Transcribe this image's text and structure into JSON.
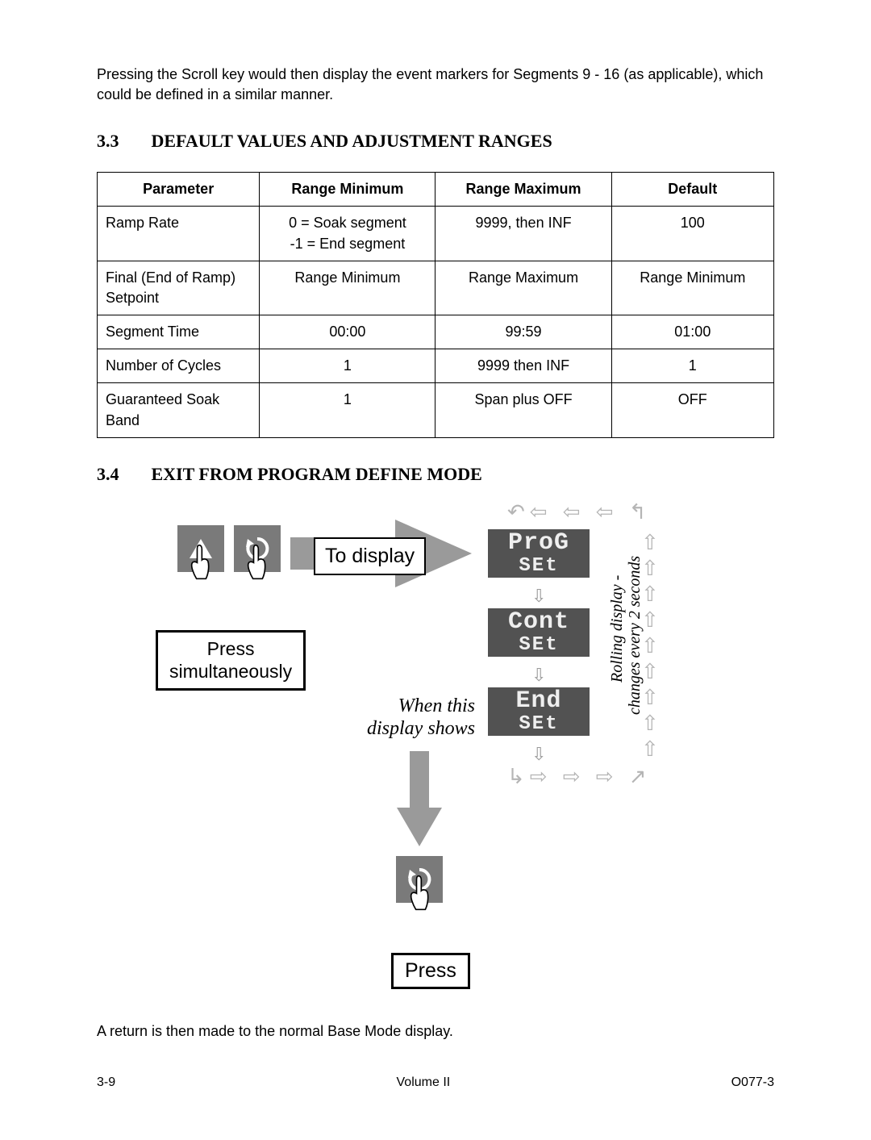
{
  "intro_text": "Pressing the Scroll key would then display the event markers for Segments 9 - 16 (as applicable), which could be defined in a similar manner.",
  "section_33": {
    "number": "3.3",
    "title": "DEFAULT VALUES AND ADJUSTMENT RANGES"
  },
  "table": {
    "headers": {
      "param": "Parameter",
      "rmin": "Range Minimum",
      "rmax": "Range Maximum",
      "def": "Default"
    },
    "rows": [
      {
        "param": "Ramp Rate",
        "rmin": "0 = Soak segment\n-1 = End segment",
        "rmax": "9999, then INF",
        "def": "100"
      },
      {
        "param": "Final (End of Ramp) Setpoint",
        "rmin": "Range Minimum",
        "rmax": "Range Maximum",
        "def": "Range Minimum"
      },
      {
        "param": "Segment Time",
        "rmin": "00:00",
        "rmax": "99:59",
        "def": "01:00"
      },
      {
        "param": "Number of Cycles",
        "rmin": "1",
        "rmax": "9999 then INF",
        "def": "1"
      },
      {
        "param": "Guaranteed Soak Band",
        "rmin": "1",
        "rmax": "Span plus OFF",
        "def": "OFF"
      }
    ]
  },
  "section_34": {
    "number": "3.4",
    "title": "EXIT FROM PROGRAM DEFINE MODE"
  },
  "diagram": {
    "press_simultaneously": "Press\nsimultaneously",
    "to_display": "To display",
    "when_this_display_shows": "When this\ndisplay shows",
    "rolling_label": "Rolling display -\nchanges every 2 seconds",
    "press": "Press",
    "lcds": [
      {
        "top": "ProG",
        "bot": "SEt"
      },
      {
        "top": "Cont",
        "bot": "SEt"
      },
      {
        "top": "End",
        "bot": "SEt"
      }
    ],
    "button_bg": "#7a7a7a",
    "lcd_bg": "#525252",
    "arrow_color": "#9a9a9a",
    "dashed_arrow_color": "#b5b5b5"
  },
  "outro_text": "A return is then made to the normal Base Mode display.",
  "footer": {
    "left": "3-9",
    "center": "Volume II",
    "right": "O077-3"
  }
}
